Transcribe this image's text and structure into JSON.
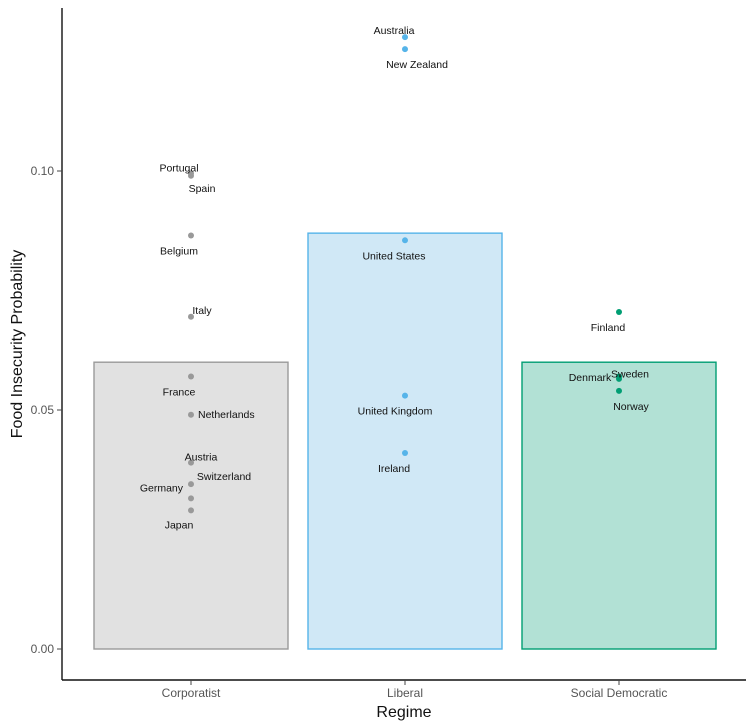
{
  "chart_data": {
    "type": "bar",
    "title": "",
    "xlabel": "Regime",
    "ylabel": "Food Insecurity Probability",
    "ylim": [
      0,
      0.13
    ],
    "yticks": [
      0.0,
      0.05,
      0.1
    ],
    "ytick_labels": [
      "0.00",
      "0.05",
      "0.10"
    ],
    "categories": [
      "Corporatist",
      "Liberal",
      "Social Democratic"
    ],
    "values": [
      0.06,
      0.087,
      0.06
    ],
    "bar_colors": {
      "Corporatist": {
        "fill": "#e1e1e1",
        "stroke": "#9a9a9a"
      },
      "Liberal": {
        "fill": "#d0e8f6",
        "stroke": "#56b4e9"
      },
      "Social Democratic": {
        "fill": "#b2e1d5",
        "stroke": "#009e73"
      }
    },
    "point_colors": {
      "Corporatist": "#999999",
      "Liberal": "#56b4e9",
      "Social Democratic": "#009e73"
    },
    "points": [
      {
        "category": "Corporatist",
        "country": "Portugal",
        "value": 0.0995
      },
      {
        "category": "Corporatist",
        "country": "Spain",
        "value": 0.099
      },
      {
        "category": "Corporatist",
        "country": "Belgium",
        "value": 0.0865
      },
      {
        "category": "Corporatist",
        "country": "Italy",
        "value": 0.0695
      },
      {
        "category": "Corporatist",
        "country": "France",
        "value": 0.057
      },
      {
        "category": "Corporatist",
        "country": "Netherlands",
        "value": 0.049
      },
      {
        "category": "Corporatist",
        "country": "Austria",
        "value": 0.039
      },
      {
        "category": "Corporatist",
        "country": "Switzerland",
        "value": 0.0345
      },
      {
        "category": "Corporatist",
        "country": "Germany",
        "value": 0.0315
      },
      {
        "category": "Corporatist",
        "country": "Japan",
        "value": 0.029
      },
      {
        "category": "Liberal",
        "country": "Australia",
        "value": 0.128
      },
      {
        "category": "Liberal",
        "country": "New Zealand",
        "value": 0.1255
      },
      {
        "category": "Liberal",
        "country": "United States",
        "value": 0.0855
      },
      {
        "category": "Liberal",
        "country": "United Kingdom",
        "value": 0.053
      },
      {
        "category": "Liberal",
        "country": "Ireland",
        "value": 0.041
      },
      {
        "category": "Social Democratic",
        "country": "Finland",
        "value": 0.0705
      },
      {
        "category": "Social Democratic",
        "country": "Sweden",
        "value": 0.057
      },
      {
        "category": "Social Democratic",
        "country": "Denmark",
        "value": 0.0565
      },
      {
        "category": "Social Democratic",
        "country": "Norway",
        "value": 0.054
      }
    ],
    "grid": false,
    "legend": "none"
  }
}
